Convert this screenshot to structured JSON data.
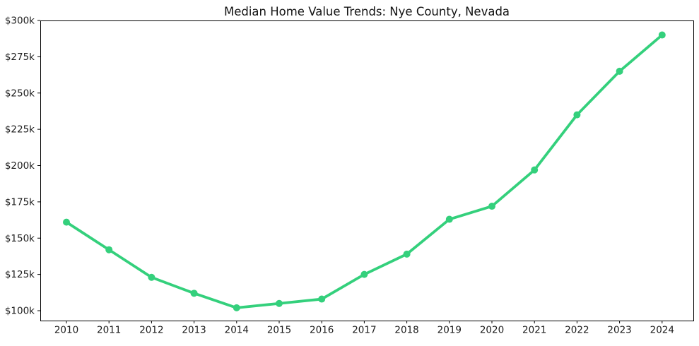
{
  "style": {
    "background": "#ffffff",
    "line_color": "#34d07c",
    "marker_color": "#34d07c",
    "axis_color": "#000000",
    "text_color": "#1c1c1c"
  },
  "chart_data": {
    "type": "line",
    "title": "Median Home Value Trends: Nye County, Nevada",
    "categories": [
      "2010",
      "2011",
      "2012",
      "2013",
      "2014",
      "2015",
      "2016",
      "2017",
      "2018",
      "2019",
      "2020",
      "2021",
      "2022",
      "2023",
      "2024"
    ],
    "values": [
      161,
      142,
      123,
      112,
      102,
      105,
      108,
      125,
      139,
      163,
      172,
      197,
      235,
      265,
      290
    ],
    "unit": "USD thousands",
    "xlabel": "",
    "ylabel": "",
    "y_ticks": [
      {
        "value": 100,
        "label": "$100k"
      },
      {
        "value": 125,
        "label": "$125k"
      },
      {
        "value": 150,
        "label": "$150k"
      },
      {
        "value": 175,
        "label": "$175k"
      },
      {
        "value": 200,
        "label": "$200k"
      },
      {
        "value": 225,
        "label": "$225k"
      },
      {
        "value": 250,
        "label": "$250k"
      },
      {
        "value": 275,
        "label": "$275k"
      },
      {
        "value": 300,
        "label": "$300k"
      }
    ],
    "ylim": [
      93,
      300
    ],
    "grid": false,
    "legend": "none",
    "marker": "circle"
  }
}
